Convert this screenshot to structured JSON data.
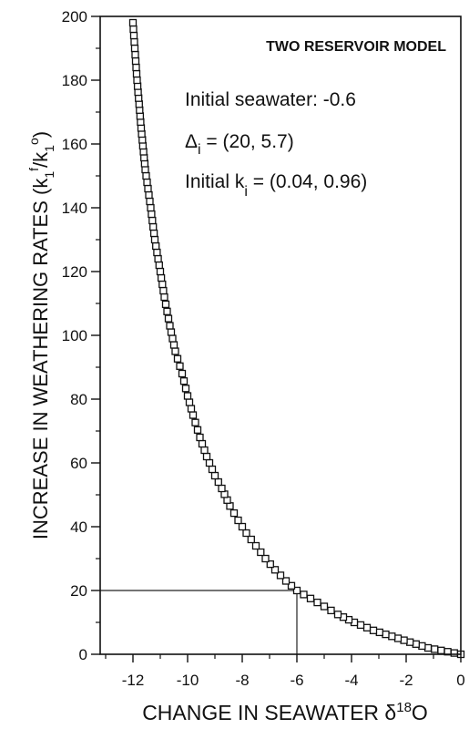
{
  "chart_data": {
    "type": "scatter",
    "title": "TWO RESERVOIR MODEL",
    "annotations": {
      "line1": "Initial seawater:  -0.6",
      "line2_symbol": "Δ",
      "line2_sub": "i",
      "line2_rest": " = (20, 5.7)",
      "line3_pre": "Initial k",
      "line3_sub": "i",
      "line3_rest": " = (0.04, 0.96)"
    },
    "xlabel": {
      "main": "CHANGE IN SEAWATER δ",
      "sup": "18",
      "tail": "O"
    },
    "ylabel": {
      "main": "INCREASE IN WEATHERING RATES (k",
      "sub1": "1",
      "sup1": "f",
      "mid": "/k",
      "sub2": "1",
      "sup2": "o",
      "tail": ")"
    },
    "xlim": [
      -13.2,
      0
    ],
    "ylim": [
      0,
      200
    ],
    "x_ticks": [
      -12,
      -10,
      -8,
      -6,
      -4,
      -2,
      0
    ],
    "y_ticks": [
      0,
      20,
      40,
      60,
      80,
      100,
      120,
      140,
      160,
      180,
      200
    ],
    "reference_point": {
      "x": -6,
      "y": 20
    },
    "series": [
      {
        "marker": "open-square",
        "x": [
          0,
          -1.2,
          -2.3,
          -3.2,
          -3.9,
          -4.5,
          -5.0,
          -5.5,
          -6.0,
          -6.4,
          -6.8,
          -7.15,
          -7.5,
          -7.85,
          -8.15,
          -8.45,
          -8.75,
          -9.0,
          -9.3,
          -9.55,
          -9.8,
          -10.0,
          -10.2,
          -10.45,
          -10.65,
          -10.85,
          -11.0,
          -11.2,
          -11.35,
          -11.55,
          -11.7,
          -11.85,
          -12.0
        ],
        "y": [
          0,
          2,
          5,
          7.5,
          10,
          12.5,
          15,
          17.5,
          20,
          23,
          26.5,
          30,
          34,
          38,
          42,
          46.5,
          52,
          56,
          62,
          68,
          75,
          81,
          88,
          95,
          103,
          112,
          120,
          130,
          140,
          152,
          165,
          180,
          198
        ]
      }
    ]
  }
}
